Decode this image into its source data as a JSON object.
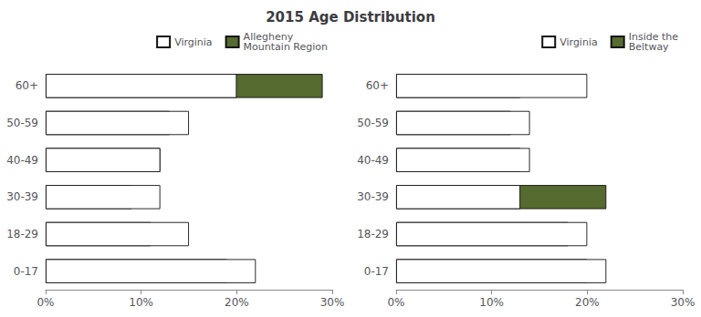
{
  "chart_data": [
    {
      "type": "bar",
      "title": "2015 Age Distribution",
      "orientation": "horizontal",
      "categories": [
        "0-17",
        "18-29",
        "30-39",
        "40-49",
        "50-59",
        "60+"
      ],
      "series": [
        {
          "name": "Virginia",
          "color": "#ffffff",
          "values": [
            22,
            15,
            12,
            12,
            15,
            20
          ]
        },
        {
          "name": "Allegheny\nMountain Region",
          "color": "#556b2f",
          "values": [
            19,
            11,
            9,
            12,
            13,
            29
          ]
        }
      ],
      "xlim": [
        0,
        30
      ],
      "xticks": [
        {
          "value": 0,
          "label": "0%"
        },
        {
          "value": 10,
          "label": "10%"
        },
        {
          "value": 20,
          "label": "20%"
        },
        {
          "value": 30,
          "label": "30%"
        }
      ],
      "grid": false,
      "legend": "upper right"
    },
    {
      "type": "bar",
      "orientation": "horizontal",
      "categories": [
        "0-17",
        "18-29",
        "30-39",
        "40-49",
        "50-59",
        "60+"
      ],
      "series": [
        {
          "name": "Virginia",
          "color": "#ffffff",
          "values": [
            22,
            20,
            13,
            14,
            14,
            20
          ]
        },
        {
          "name": "Inside the\nBeltway",
          "color": "#556b2f",
          "values": [
            20,
            18,
            22,
            13,
            12,
            13
          ]
        }
      ],
      "xlim": [
        0,
        30
      ],
      "xticks": [
        {
          "value": 0,
          "label": "0%"
        },
        {
          "value": 10,
          "label": "10%"
        },
        {
          "value": 20,
          "label": "20%"
        },
        {
          "value": 30,
          "label": "30%"
        }
      ],
      "grid": false,
      "legend": "upper right"
    }
  ]
}
